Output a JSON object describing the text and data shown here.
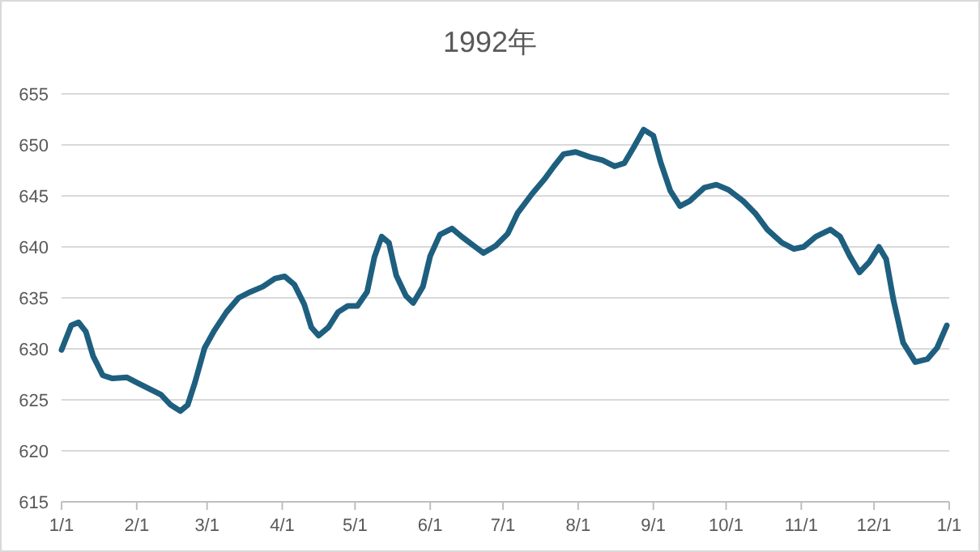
{
  "chart_data": {
    "type": "line",
    "title": "1992年",
    "color": "#1e5f7f",
    "line_style": "solid",
    "grid": "y",
    "x": [
      "1992-01-01",
      "1992-01-05",
      "1992-01-08",
      "1992-01-11",
      "1992-01-14",
      "1992-01-18",
      "1992-01-22",
      "1992-01-28",
      "1992-02-01",
      "1992-02-06",
      "1992-02-11",
      "1992-02-15",
      "1992-02-19",
      "1992-02-22",
      "1992-02-25",
      "1992-02-29",
      "1992-03-04",
      "1992-03-09",
      "1992-03-14",
      "1992-03-19",
      "1992-03-24",
      "1992-03-29",
      "1992-04-02",
      "1992-04-06",
      "1992-04-10",
      "1992-04-13",
      "1992-04-16",
      "1992-04-20",
      "1992-04-24",
      "1992-04-28",
      "1992-05-02",
      "1992-05-06",
      "1992-05-09",
      "1992-05-12",
      "1992-05-15",
      "1992-05-18",
      "1992-05-22",
      "1992-05-25",
      "1992-05-29",
      "1992-06-01",
      "1992-06-05",
      "1992-06-10",
      "1992-06-14",
      "1992-06-19",
      "1992-06-23",
      "1992-06-28",
      "1992-07-03",
      "1992-07-07",
      "1992-07-13",
      "1992-07-18",
      "1992-07-22",
      "1992-07-26",
      "1992-07-31",
      "1992-08-06",
      "1992-08-11",
      "1992-08-16",
      "1992-08-20",
      "1992-08-24",
      "1992-08-28",
      "1992-09-01",
      "1992-09-04",
      "1992-09-08",
      "1992-09-12",
      "1992-09-16",
      "1992-09-22",
      "1992-09-27",
      "1992-10-02",
      "1992-10-08",
      "1992-10-13",
      "1992-10-18",
      "1992-10-24",
      "1992-10-29",
      "1992-11-02",
      "1992-11-07",
      "1992-11-13",
      "1992-11-17",
      "1992-11-21",
      "1992-11-25",
      "1992-11-29",
      "1992-12-03",
      "1992-12-06",
      "1992-12-09",
      "1992-12-13",
      "1992-12-18",
      "1992-12-23",
      "1992-12-27",
      "1992-12-31"
    ],
    "values": [
      629.9,
      632.3,
      632.6,
      631.7,
      629.3,
      627.4,
      627.1,
      627.2,
      626.7,
      626.1,
      625.5,
      624.5,
      623.9,
      624.5,
      626.7,
      630.1,
      631.8,
      633.6,
      635.0,
      635.6,
      636.1,
      636.9,
      637.1,
      636.3,
      634.4,
      632.1,
      631.3,
      632.1,
      633.6,
      634.2,
      634.2,
      635.6,
      639.0,
      641.0,
      640.4,
      637.2,
      635.2,
      634.5,
      636.1,
      639.1,
      641.2,
      641.8,
      641.0,
      640.1,
      639.4,
      640.1,
      641.3,
      643.3,
      645.2,
      646.6,
      647.9,
      649.1,
      649.3,
      648.8,
      648.5,
      647.9,
      648.2,
      649.8,
      651.5,
      650.9,
      648.3,
      645.5,
      644.0,
      644.5,
      645.8,
      646.1,
      645.6,
      644.5,
      643.3,
      641.7,
      640.4,
      639.8,
      640.0,
      641.0,
      641.7,
      641.0,
      639.1,
      637.5,
      638.5,
      640.0,
      638.8,
      634.8,
      630.6,
      628.7,
      629.0,
      630.1,
      632.3
    ],
    "xlim": [
      "1992-01-01",
      "1993-01-01"
    ],
    "xticks": [
      {
        "value": "1992-01-01",
        "label": "1/1"
      },
      {
        "value": "1992-02-01",
        "label": "2/1"
      },
      {
        "value": "1992-03-01",
        "label": "3/1"
      },
      {
        "value": "1992-04-01",
        "label": "4/1"
      },
      {
        "value": "1992-05-01",
        "label": "5/1"
      },
      {
        "value": "1992-06-01",
        "label": "6/1"
      },
      {
        "value": "1992-07-01",
        "label": "7/1"
      },
      {
        "value": "1992-08-01",
        "label": "8/1"
      },
      {
        "value": "1992-09-01",
        "label": "9/1"
      },
      {
        "value": "1992-10-01",
        "label": "10/1"
      },
      {
        "value": "1992-11-01",
        "label": "11/1"
      },
      {
        "value": "1992-12-01",
        "label": "12/1"
      },
      {
        "value": "1993-01-01",
        "label": "1/1"
      }
    ],
    "ylim": [
      615,
      655
    ],
    "yticks": [
      615,
      620,
      625,
      630,
      635,
      640,
      645,
      650,
      655
    ]
  }
}
